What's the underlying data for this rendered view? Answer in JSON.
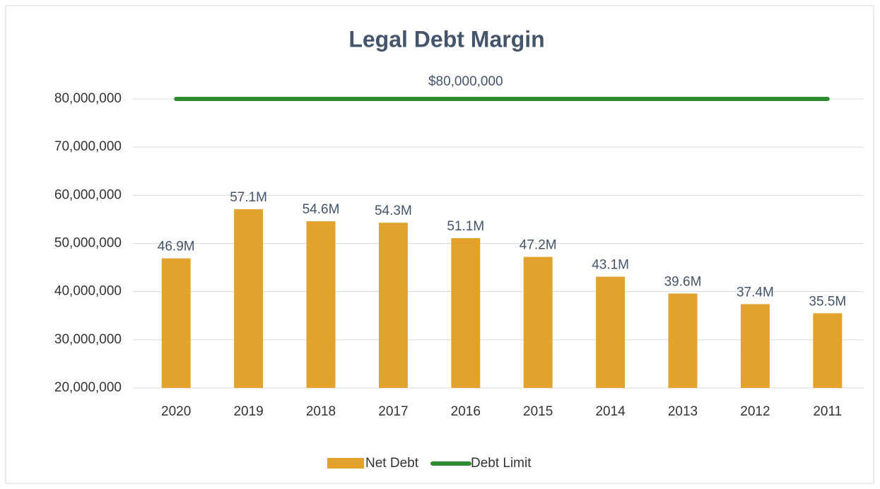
{
  "chart_data": {
    "type": "bar",
    "title": "Legal Debt Margin",
    "categories": [
      "2020",
      "2019",
      "2018",
      "2017",
      "2016",
      "2015",
      "2014",
      "2013",
      "2012",
      "2011"
    ],
    "series": [
      {
        "name": "Net Debt",
        "type": "bar",
        "color": "#e3a22b",
        "values": [
          46900000,
          57100000,
          54600000,
          54300000,
          51100000,
          47200000,
          43100000,
          39600000,
          37400000,
          35500000
        ],
        "value_labels": [
          "46.9M",
          "57.1M",
          "54.6M",
          "54.3M",
          "51.1M",
          "47.2M",
          "43.1M",
          "39.6M",
          "37.4M",
          "35.5M"
        ]
      },
      {
        "name": "Debt Limit",
        "type": "line",
        "color": "#2e8b2e",
        "values": [
          80000000,
          80000000,
          80000000,
          80000000,
          80000000,
          80000000,
          80000000,
          80000000,
          80000000,
          80000000
        ],
        "value_labels": [
          null,
          null,
          null,
          null,
          "$80,000,000",
          null,
          null,
          null,
          null,
          null
        ]
      }
    ],
    "ylim": [
      20000000,
      80000000
    ],
    "yticks": [
      {
        "value": 20000000,
        "label": "20,000,000"
      },
      {
        "value": 30000000,
        "label": "30,000,000"
      },
      {
        "value": 40000000,
        "label": "40,000,000"
      },
      {
        "value": 50000000,
        "label": "50,000,000"
      },
      {
        "value": 60000000,
        "label": "60,000,000"
      },
      {
        "value": 70000000,
        "label": "70,000,000"
      },
      {
        "value": 80000000,
        "label": "80,000,000"
      }
    ],
    "grid": true,
    "legend": "bottom"
  }
}
